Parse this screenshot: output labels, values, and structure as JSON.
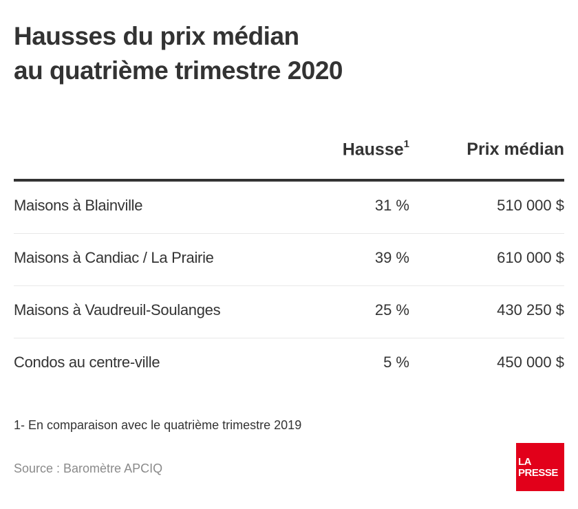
{
  "title": {
    "line1": "Hausses du prix médian",
    "line2": "au quatrième trimestre 2020"
  },
  "table": {
    "columns": {
      "label": "",
      "hausse": "Hausse",
      "hausse_footnote_mark": "1",
      "prix": "Prix médian"
    },
    "rows": [
      {
        "label": "Maisons à Blainville",
        "hausse": "31 %",
        "prix": "510 000 $"
      },
      {
        "label": "Maisons à Candiac / La Prairie",
        "hausse": "39 %",
        "prix": "610 000 $"
      },
      {
        "label": "Maisons à Vaudreuil-Soulanges",
        "hausse": "25 %",
        "prix": "430 250 $"
      },
      {
        "label": "Condos au centre-ville",
        "hausse": "5 %",
        "prix": "450 000 $"
      }
    ]
  },
  "footnote": "1- En comparaison avec le quatrième trimestre 2019",
  "source": "Source : Baromètre APCIQ",
  "logo": {
    "line1": "LA",
    "line2": "PRESSE",
    "color": "#e2001a"
  }
}
